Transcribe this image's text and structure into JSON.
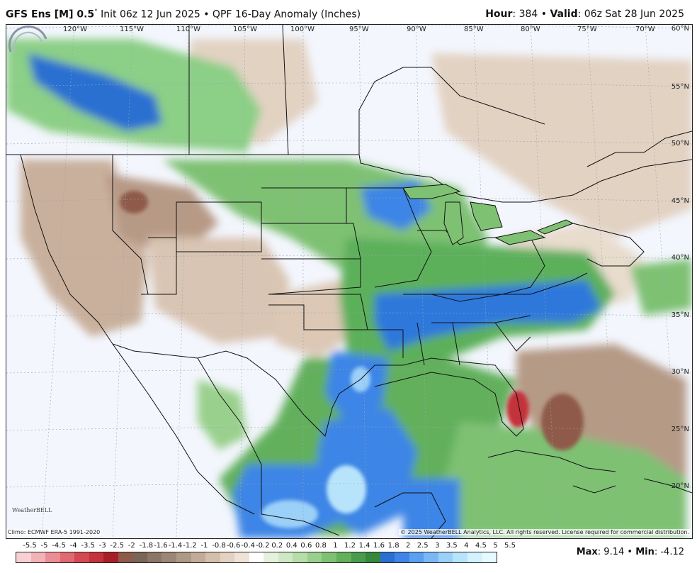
{
  "header": {
    "model": "GFS Ens [M] 0.5",
    "degree": "°",
    "init": " Init 06z 12 Jun 2025 • QPF 16-Day Anomaly (Inches)",
    "hour_label": "Hour",
    "hour_value": ": 384 • ",
    "valid_label": "Valid",
    "valid_value": ": 06z Sat 28 Jun 2025"
  },
  "map": {
    "longitude_labels": [
      "120°W",
      "115°W",
      "110°W",
      "105°W",
      "100°W",
      "95°W",
      "90°W",
      "85°W",
      "80°W",
      "75°W",
      "70°W"
    ],
    "latitude_labels": [
      "60°N",
      "55°N",
      "50°N",
      "45°N",
      "40°N",
      "35°N",
      "30°N",
      "25°N",
      "20°N"
    ],
    "climo_note": "Climo: ECMWF ERA-5 1991-2020",
    "copyright": "© 2025 WeatherBELL Analytics, LLC. All rights reserved. License required for commercial distribution.",
    "logo_text": "WeatherBELL"
  },
  "legend": {
    "ticks": [
      "-5.5",
      "-5",
      "-4.5",
      "-4",
      "-3.5",
      "-3",
      "-2.5",
      "-2",
      "-1.8",
      "-1.6",
      "-1.4",
      "-1.2",
      "-1",
      "-0.8",
      "-0.6",
      "-0.4",
      "-0.2",
      "0.2",
      "0.4",
      "0.6",
      "0.8",
      "1",
      "1.2",
      "1.4",
      "1.6",
      "1.8",
      "2",
      "2.5",
      "3",
      "3.5",
      "4",
      "4.5",
      "5",
      "5.5"
    ],
    "colors": [
      "#f7d0d4",
      "#f2b3b8",
      "#ea8d94",
      "#e06a72",
      "#d44a52",
      "#c4323b",
      "#a91f28",
      "#8f5a4a",
      "#7a6558",
      "#8b7566",
      "#9c8676",
      "#ae9886",
      "#c2ab98",
      "#d4bfac",
      "#e3d2c1",
      "#eee3d6",
      "#ffffff",
      "#e4f2dd",
      "#cfe9c4",
      "#b6dea9",
      "#9ad08d",
      "#7ec173",
      "#62b05c",
      "#4a9c4c",
      "#37873e",
      "#2a6fd1",
      "#3d85e6",
      "#5aa0f0",
      "#79b8f5",
      "#9bd0f8",
      "#b8e4fb",
      "#d2f2fd",
      "#e6fbff"
    ],
    "max_label": "Max",
    "max_value": ": 9.14 • ",
    "min_label": "Min",
    "min_value": ": -4.12"
  }
}
